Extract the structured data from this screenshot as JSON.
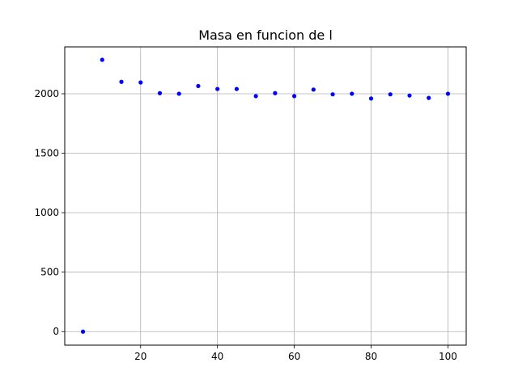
{
  "chart_data": {
    "type": "scatter",
    "title": "Masa en funcion de l",
    "xlabel": "",
    "ylabel": "",
    "grid": true,
    "marker_color": "#0000ff",
    "xlim": [
      0.25,
      104.75
    ],
    "ylim": [
      -114,
      2394
    ],
    "x_ticks": [
      20,
      40,
      60,
      80,
      100
    ],
    "x_tick_labels": [
      "20",
      "40",
      "60",
      "80",
      "100"
    ],
    "y_ticks": [
      0,
      500,
      1000,
      1500,
      2000
    ],
    "y_tick_labels": [
      "0",
      "500",
      "1000",
      "1500",
      "2000"
    ],
    "series": [
      {
        "x": [
          5,
          10,
          15,
          20,
          25,
          30,
          35,
          40,
          45,
          50,
          55,
          60,
          65,
          70,
          75,
          80,
          85,
          90,
          95,
          100
        ],
        "y": [
          0,
          2285,
          2100,
          2095,
          2005,
          2000,
          2065,
          2040,
          2040,
          1980,
          2005,
          1980,
          2035,
          1995,
          2000,
          1960,
          1995,
          1985,
          1965,
          2000
        ]
      }
    ]
  }
}
